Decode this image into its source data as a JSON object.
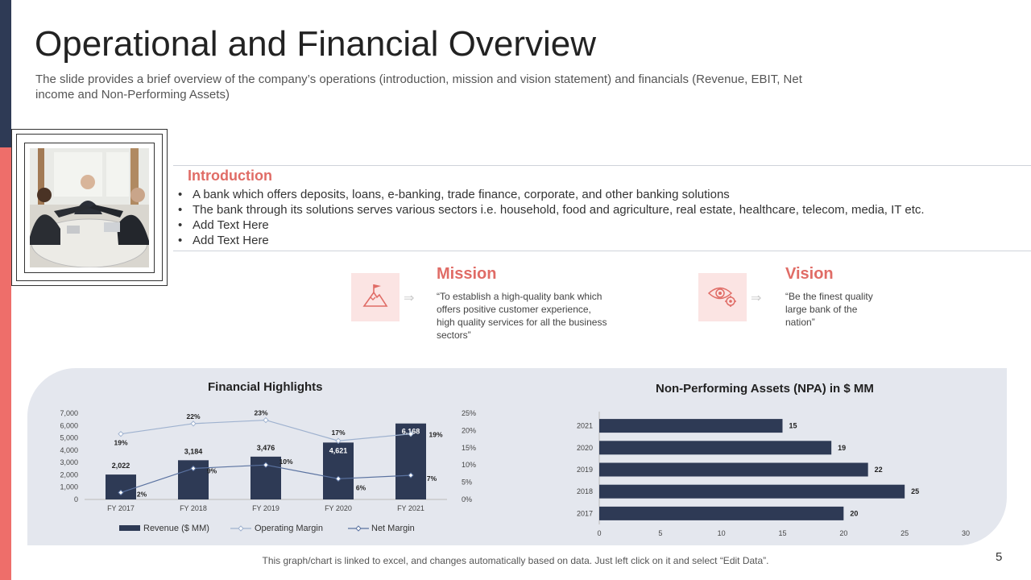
{
  "slide": {
    "title": "Operational and Financial Overview",
    "subtitle": "The slide provides a brief overview of the company’s operations (introduction, mission and vision statement) and financials (Revenue, EBIT, Net income and Non-Performing Assets)",
    "page_number": "5",
    "footer_note": "This graph/chart is linked to excel, and changes automatically based on data. Just left click on it and select “Edit Data”."
  },
  "introduction": {
    "heading": "Introduction",
    "bullets": [
      "A bank which offers deposits, loans, e-banking, trade finance, corporate, and other banking solutions",
      "The bank through its solutions serves various sectors i.e. household, food and agriculture, real estate, healthcare, telecom, media, IT etc.",
      "Add Text Here",
      "Add Text Here"
    ]
  },
  "mission": {
    "heading": "Mission",
    "text": "“To establish a high-quality bank which offers positive customer experience, high quality services for all the business sectors”",
    "icon": "mountain-flag-icon"
  },
  "vision": {
    "heading": "Vision",
    "text": "“Be the finest quality large bank of the nation”",
    "icon": "eye-gear-icon"
  },
  "colors": {
    "accent_red": "#e06c66",
    "navy": "#2e3a55",
    "panel_bg": "#e4e7ee"
  },
  "chart_data": [
    {
      "type": "bar",
      "title": "Financial Highlights",
      "categories": [
        "FY 2017",
        "FY 2018",
        "FY 2019",
        "FY 2020",
        "FY 2021"
      ],
      "series": [
        {
          "name": "Revenue ($ MM)",
          "type": "bar",
          "axis": "left",
          "values": [
            2022,
            3184,
            3476,
            4621,
            6168
          ],
          "labels": [
            "2,022",
            "3,184",
            "3,476",
            "4,621",
            "6,168"
          ]
        },
        {
          "name": "Operating Margin",
          "type": "line",
          "axis": "right",
          "values": [
            19,
            22,
            23,
            17,
            19
          ],
          "labels": [
            "19%",
            "22%",
            "23%",
            "17%",
            "19%"
          ]
        },
        {
          "name": "Net Margin",
          "type": "line",
          "axis": "right",
          "values": [
            2,
            9,
            10,
            6,
            7
          ],
          "labels": [
            "2%",
            "9%",
            "10%",
            "6%",
            "7%"
          ]
        }
      ],
      "ylim": [
        0,
        7000
      ],
      "y_ticks": [
        "0",
        "1,000",
        "2,000",
        "3,000",
        "4,000",
        "5,000",
        "6,000",
        "7,000"
      ],
      "y2lim": [
        0,
        25
      ],
      "y2_ticks": [
        "0%",
        "5%",
        "10%",
        "15%",
        "20%",
        "25%"
      ],
      "legend": "bottom"
    },
    {
      "type": "bar",
      "orientation": "horizontal",
      "title": "Non-Performing Assets  (NPA) in $ MM",
      "categories": [
        "2021",
        "2020",
        "2019",
        "2018",
        "2017"
      ],
      "values": [
        15,
        19,
        22,
        25,
        20
      ],
      "xlim": [
        0,
        30
      ],
      "x_ticks": [
        "0",
        "5",
        "10",
        "15",
        "20",
        "25",
        "30"
      ]
    }
  ]
}
